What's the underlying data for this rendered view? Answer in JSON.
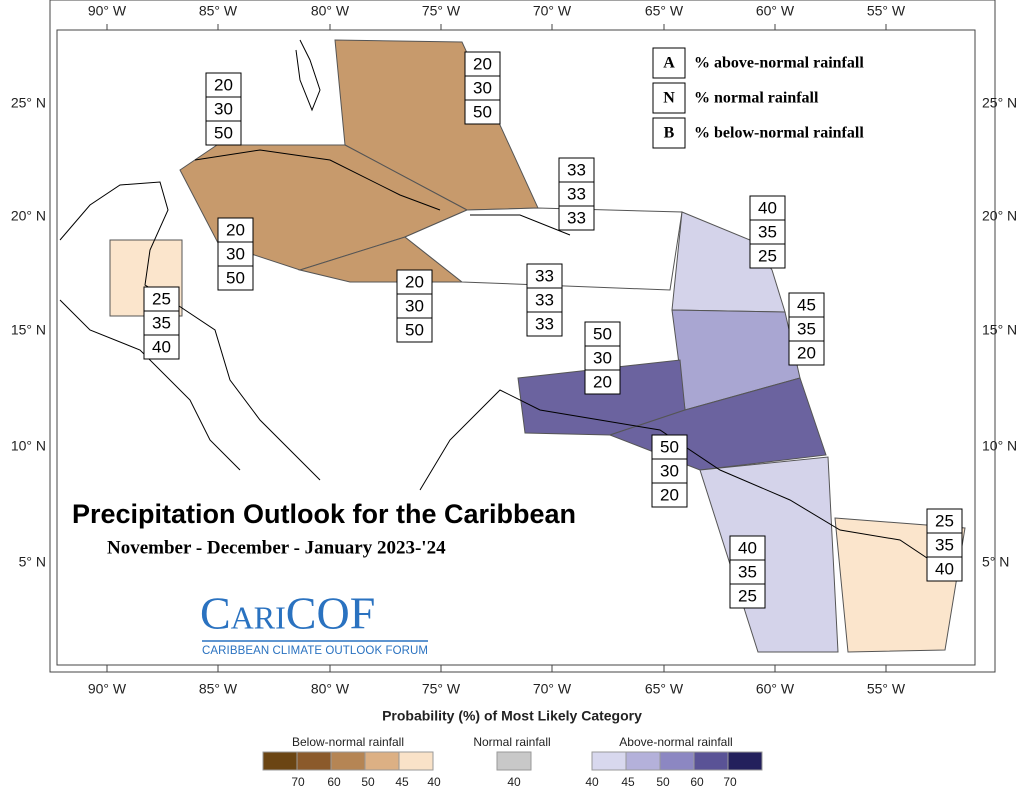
{
  "map": {
    "lon_labels": [
      "90° W",
      "85° W",
      "80° W",
      "75° W",
      "70° W",
      "65° W",
      "60° W",
      "55° W"
    ],
    "lat_labels": [
      "25° N",
      "20° N",
      "15° N",
      "10° N",
      "5° N"
    ]
  },
  "key": [
    {
      "letter": "A",
      "text": "% above-normal rainfall"
    },
    {
      "letter": "N",
      "text": "% normal rainfall"
    },
    {
      "letter": "B",
      "text": "% below-normal rainfall"
    }
  ],
  "regions": [
    {
      "above": 20,
      "normal": 30,
      "below": 50
    },
    {
      "above": 20,
      "normal": 30,
      "below": 50
    },
    {
      "above": 33,
      "normal": 33,
      "below": 33
    },
    {
      "above": 20,
      "normal": 30,
      "below": 50
    },
    {
      "above": 20,
      "normal": 30,
      "below": 50
    },
    {
      "above": 33,
      "normal": 33,
      "below": 33
    },
    {
      "above": 25,
      "normal": 35,
      "below": 40
    },
    {
      "above": 40,
      "normal": 35,
      "below": 25
    },
    {
      "above": 45,
      "normal": 35,
      "below": 20
    },
    {
      "above": 50,
      "normal": 30,
      "below": 20
    },
    {
      "above": 50,
      "normal": 30,
      "below": 20
    },
    {
      "above": 40,
      "normal": 35,
      "below": 25
    },
    {
      "above": 25,
      "normal": 35,
      "below": 40
    }
  ],
  "title": "Precipitation Outlook for the Caribbean",
  "subtitle": "November - December - January 2023-'24",
  "logo": {
    "name": "CariCOF",
    "tagline": "CARIBBEAN CLIMATE OUTLOOK FORUM"
  },
  "legend": {
    "title": "Probability (%) of Most Likely Category",
    "groups": [
      {
        "name": "Below-normal rainfall",
        "ticks": [
          70,
          60,
          50,
          45,
          40
        ]
      },
      {
        "name": "Normal rainfall",
        "ticks": [
          40
        ]
      },
      {
        "name": "Above-normal rainfall",
        "ticks": [
          40,
          45,
          50,
          60,
          70
        ]
      }
    ]
  }
}
